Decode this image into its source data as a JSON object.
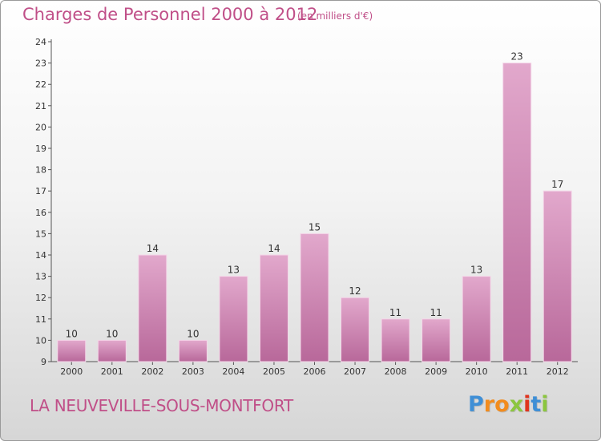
{
  "chart_data": {
    "type": "bar",
    "title": "Charges de Personnel 2000 à 2012",
    "subtitle": "(en milliers d'€)",
    "categories": [
      "2000",
      "2001",
      "2002",
      "2003",
      "2004",
      "2005",
      "2006",
      "2007",
      "2008",
      "2009",
      "2010",
      "2011",
      "2012"
    ],
    "values": [
      10,
      10,
      14,
      10,
      13,
      14,
      15,
      12,
      11,
      11,
      13,
      23,
      17
    ],
    "ylim": [
      9,
      24
    ],
    "yticks": [
      "9",
      "10",
      "11",
      "12",
      "13",
      "14",
      "15",
      "16",
      "17",
      "18",
      "19",
      "20",
      "21",
      "22",
      "23",
      "24"
    ],
    "grid": false,
    "colors": {
      "bar_light": "#e2a8cc",
      "bar_dark": "#b8689a",
      "text": "#c04f88"
    }
  },
  "footer": {
    "commune": "LA NEUVEVILLE-SOUS-MONTFORT",
    "logo_letters": [
      "P",
      "r",
      "o",
      "x",
      "i",
      "t",
      "i"
    ],
    "logo_colors": [
      "#3f8fd6",
      "#f28c1e",
      "#f28c1e",
      "#8cc63f",
      "#e0341e",
      "#3f8fd6",
      "#8cc63f"
    ]
  }
}
